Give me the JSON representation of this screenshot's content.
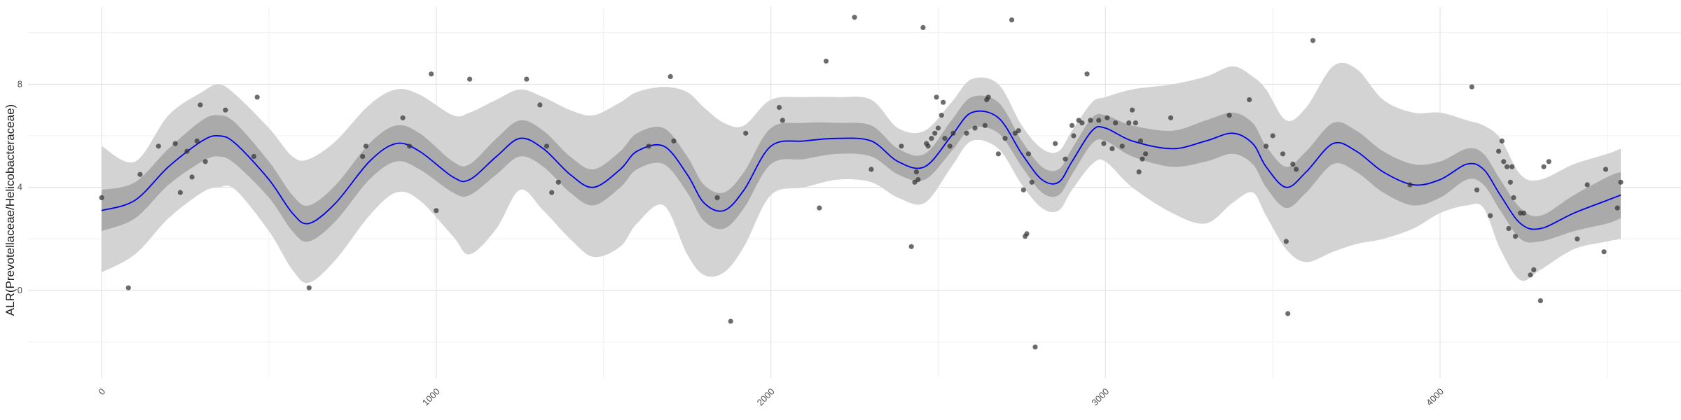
{
  "chart_data": {
    "type": "line",
    "title": "",
    "xlabel": "",
    "ylabel": "ALR(Prevotellaceae/Helicobacteraceae)",
    "xlim": [
      -220,
      4720
    ],
    "ylim": [
      -3.4,
      11.0
    ],
    "grid": true,
    "x_ticks": [
      0,
      1000,
      2000,
      3000,
      4000
    ],
    "x_tick_labels": [
      "0",
      "1000",
      "2000",
      "3000",
      "4000"
    ],
    "y_ticks": [
      0,
      4,
      8
    ],
    "y_tick_labels": [
      "0",
      "4",
      "8"
    ],
    "colors": {
      "fit_line": "#0000ee",
      "inner_band": "#aaaaaa",
      "outer_band": "#d3d3d3",
      "points": "#333333",
      "grid_major": "#e3e3e3",
      "grid_minor": "#f0f0f0"
    },
    "series": [
      {
        "role": "fit",
        "x": [
          0,
          100,
          200,
          300,
          350,
          400,
          500,
          570,
          620,
          700,
          800,
          880,
          950,
          1050,
          1100,
          1180,
          1250,
          1320,
          1400,
          1470,
          1550,
          1600,
          1680,
          1750,
          1800,
          1860,
          1920,
          2000,
          2100,
          2200,
          2300,
          2380,
          2460,
          2540,
          2600,
          2680,
          2750,
          2810,
          2860,
          2900,
          2960,
          3000,
          3080,
          3200,
          3300,
          3380,
          3440,
          3480,
          3540,
          3600,
          3680,
          3750,
          3830,
          3920,
          4000,
          4080,
          4130,
          4180,
          4240,
          4300,
          4400,
          4500,
          4540
        ],
        "y": [
          3.1,
          3.5,
          4.8,
          5.8,
          6.0,
          5.7,
          4.3,
          3.0,
          2.6,
          3.4,
          5.0,
          5.7,
          5.4,
          4.4,
          4.3,
          5.2,
          5.9,
          5.5,
          4.5,
          4.0,
          4.7,
          5.4,
          5.6,
          4.5,
          3.4,
          3.1,
          3.9,
          5.6,
          5.8,
          5.9,
          5.8,
          5.0,
          4.8,
          6.0,
          6.9,
          6.7,
          5.3,
          4.3,
          4.2,
          5.0,
          6.2,
          6.3,
          5.8,
          5.5,
          5.8,
          6.1,
          5.7,
          4.8,
          4.0,
          4.6,
          5.7,
          5.4,
          4.6,
          4.1,
          4.3,
          4.9,
          4.7,
          3.7,
          2.6,
          2.4,
          3.0,
          3.5,
          3.7
        ]
      },
      {
        "role": "inner_band",
        "x": [
          0,
          100,
          200,
          300,
          350,
          400,
          500,
          570,
          620,
          700,
          800,
          880,
          950,
          1050,
          1100,
          1180,
          1250,
          1320,
          1400,
          1470,
          1550,
          1600,
          1680,
          1750,
          1800,
          1860,
          1920,
          2000,
          2100,
          2200,
          2300,
          2380,
          2460,
          2540,
          2600,
          2680,
          2750,
          2810,
          2860,
          2900,
          2960,
          3000,
          3080,
          3200,
          3300,
          3380,
          3440,
          3480,
          3540,
          3600,
          3680,
          3750,
          3830,
          3920,
          4000,
          4080,
          4130,
          4180,
          4240,
          4300,
          4400,
          4500,
          4540
        ],
        "low": [
          2.3,
          2.8,
          4.1,
          5.0,
          5.2,
          4.9,
          3.6,
          2.3,
          1.9,
          2.7,
          4.3,
          5.0,
          4.7,
          3.8,
          3.7,
          4.5,
          5.2,
          4.8,
          3.8,
          3.3,
          4.0,
          4.7,
          4.9,
          3.8,
          2.7,
          2.4,
          3.2,
          4.9,
          5.1,
          5.3,
          5.2,
          4.5,
          4.3,
          5.4,
          6.3,
          6.1,
          4.8,
          3.8,
          3.7,
          4.5,
          5.7,
          5.8,
          5.2,
          4.8,
          5.0,
          5.3,
          4.9,
          4.0,
          3.2,
          3.8,
          4.9,
          4.6,
          3.8,
          3.3,
          3.6,
          4.3,
          4.1,
          3.1,
          2.0,
          1.9,
          2.3,
          2.6,
          2.8
        ],
        "high": [
          3.9,
          4.2,
          5.5,
          6.6,
          6.8,
          6.5,
          5.0,
          3.7,
          3.3,
          4.1,
          5.7,
          6.4,
          6.1,
          5.0,
          4.9,
          5.9,
          6.6,
          6.2,
          5.2,
          4.7,
          5.4,
          6.1,
          6.3,
          5.2,
          4.1,
          3.8,
          4.6,
          6.3,
          6.5,
          6.5,
          6.4,
          5.5,
          5.3,
          6.6,
          7.5,
          7.3,
          5.8,
          4.8,
          4.7,
          5.5,
          6.7,
          6.8,
          6.4,
          6.2,
          6.6,
          6.9,
          6.5,
          5.6,
          4.8,
          5.4,
          6.5,
          6.2,
          5.4,
          4.9,
          5.0,
          5.5,
          5.3,
          4.3,
          3.2,
          2.9,
          3.7,
          4.4,
          4.6
        ]
      },
      {
        "role": "outer_band",
        "x": [
          0,
          100,
          200,
          300,
          350,
          400,
          500,
          570,
          620,
          700,
          800,
          880,
          950,
          1050,
          1100,
          1180,
          1250,
          1320,
          1400,
          1470,
          1550,
          1600,
          1680,
          1750,
          1800,
          1860,
          1920,
          2000,
          2100,
          2200,
          2300,
          2380,
          2460,
          2540,
          2600,
          2680,
          2750,
          2810,
          2860,
          2900,
          2960,
          3000,
          3080,
          3200,
          3300,
          3380,
          3440,
          3480,
          3540,
          3600,
          3680,
          3750,
          3830,
          3920,
          4000,
          4080,
          4130,
          4180,
          4240,
          4300,
          4400,
          4500,
          4540
        ],
        "low": [
          0.7,
          1.4,
          2.8,
          3.8,
          4.0,
          3.9,
          2.3,
          0.8,
          0.3,
          1.2,
          2.9,
          3.8,
          3.5,
          2.1,
          1.4,
          2.4,
          3.9,
          3.1,
          2.0,
          1.3,
          1.7,
          2.6,
          3.3,
          1.4,
          0.6,
          0.7,
          1.7,
          3.7,
          4.0,
          4.3,
          4.2,
          3.6,
          3.4,
          4.8,
          5.8,
          5.5,
          4.1,
          3.2,
          3.1,
          3.9,
          4.9,
          5.0,
          4.0,
          3.0,
          2.6,
          3.4,
          3.8,
          2.9,
          1.6,
          1.1,
          1.5,
          1.8,
          2.0,
          2.4,
          3.0,
          3.3,
          3.2,
          1.6,
          0.4,
          0.8,
          1.6,
          1.9,
          2.0
        ],
        "high": [
          5.6,
          5.0,
          6.8,
          7.7,
          8.0,
          7.6,
          6.3,
          5.2,
          5.1,
          5.8,
          7.2,
          7.8,
          7.6,
          6.8,
          6.9,
          7.4,
          7.8,
          7.5,
          7.0,
          6.8,
          7.3,
          7.7,
          7.9,
          7.7,
          7.1,
          6.5,
          6.4,
          7.4,
          7.5,
          7.5,
          7.4,
          6.3,
          6.2,
          7.3,
          8.2,
          8.0,
          6.4,
          5.5,
          5.4,
          6.2,
          7.3,
          7.5,
          7.8,
          8.0,
          8.3,
          8.7,
          8.3,
          7.8,
          6.6,
          7.1,
          8.7,
          8.6,
          7.4,
          6.9,
          6.9,
          6.6,
          6.4,
          5.9,
          4.5,
          4.3,
          4.9,
          5.3,
          5.5
        ]
      },
      {
        "role": "observations",
        "points": [
          [
            0,
            3.6
          ],
          [
            80,
            0.1
          ],
          [
            115,
            4.5
          ],
          [
            170,
            5.6
          ],
          [
            220,
            5.7
          ],
          [
            235,
            3.8
          ],
          [
            255,
            5.4
          ],
          [
            270,
            4.4
          ],
          [
            285,
            5.8
          ],
          [
            295,
            7.2
          ],
          [
            310,
            5.0
          ],
          [
            370,
            7.0
          ],
          [
            455,
            5.2
          ],
          [
            465,
            7.5
          ],
          [
            620,
            0.1
          ],
          [
            780,
            5.2
          ],
          [
            790,
            5.6
          ],
          [
            900,
            6.7
          ],
          [
            920,
            5.6
          ],
          [
            985,
            8.4
          ],
          [
            1000,
            3.1
          ],
          [
            1100,
            8.2
          ],
          [
            1270,
            8.2
          ],
          [
            1310,
            7.2
          ],
          [
            1330,
            5.6
          ],
          [
            1345,
            3.8
          ],
          [
            1365,
            4.2
          ],
          [
            1635,
            5.6
          ],
          [
            1700,
            8.3
          ],
          [
            1710,
            5.8
          ],
          [
            1840,
            3.6
          ],
          [
            1880,
            -1.2
          ],
          [
            1925,
            6.1
          ],
          [
            2025,
            7.1
          ],
          [
            2035,
            6.6
          ],
          [
            2145,
            3.2
          ],
          [
            2165,
            8.9
          ],
          [
            2250,
            10.6
          ],
          [
            2300,
            4.7
          ],
          [
            2390,
            5.6
          ],
          [
            2420,
            1.7
          ],
          [
            2430,
            4.2
          ],
          [
            2435,
            4.6
          ],
          [
            2440,
            4.3
          ],
          [
            2455,
            10.2
          ],
          [
            2465,
            5.7
          ],
          [
            2470,
            5.6
          ],
          [
            2480,
            5.9
          ],
          [
            2490,
            6.1
          ],
          [
            2495,
            7.5
          ],
          [
            2500,
            6.3
          ],
          [
            2510,
            6.8
          ],
          [
            2515,
            7.3
          ],
          [
            2520,
            5.9
          ],
          [
            2535,
            5.6
          ],
          [
            2545,
            6.1
          ],
          [
            2585,
            6.1
          ],
          [
            2610,
            6.3
          ],
          [
            2640,
            6.4
          ],
          [
            2645,
            7.4
          ],
          [
            2650,
            7.5
          ],
          [
            2680,
            5.3
          ],
          [
            2700,
            5.9
          ],
          [
            2720,
            10.5
          ],
          [
            2730,
            6.1
          ],
          [
            2740,
            6.2
          ],
          [
            2755,
            3.9
          ],
          [
            2760,
            2.1
          ],
          [
            2765,
            2.2
          ],
          [
            2770,
            5.3
          ],
          [
            2780,
            4.2
          ],
          [
            2790,
            -2.2
          ],
          [
            2850,
            5.7
          ],
          [
            2880,
            5.1
          ],
          [
            2900,
            6.4
          ],
          [
            2905,
            6.0
          ],
          [
            2920,
            6.6
          ],
          [
            2930,
            6.5
          ],
          [
            2945,
            8.4
          ],
          [
            2955,
            6.6
          ],
          [
            2980,
            6.6
          ],
          [
            2995,
            5.7
          ],
          [
            3005,
            6.7
          ],
          [
            3020,
            5.5
          ],
          [
            3030,
            6.5
          ],
          [
            3050,
            5.6
          ],
          [
            3070,
            6.5
          ],
          [
            3080,
            7.0
          ],
          [
            3090,
            6.5
          ],
          [
            3100,
            4.6
          ],
          [
            3105,
            5.8
          ],
          [
            3110,
            5.1
          ],
          [
            3120,
            5.3
          ],
          [
            3195,
            6.7
          ],
          [
            3370,
            6.8
          ],
          [
            3430,
            7.4
          ],
          [
            3480,
            5.6
          ],
          [
            3500,
            6.0
          ],
          [
            3530,
            5.3
          ],
          [
            3540,
            1.9
          ],
          [
            3545,
            -0.9
          ],
          [
            3560,
            4.9
          ],
          [
            3570,
            4.7
          ],
          [
            3620,
            9.7
          ],
          [
            3910,
            4.1
          ],
          [
            4095,
            7.9
          ],
          [
            4110,
            3.9
          ],
          [
            4150,
            2.9
          ],
          [
            4175,
            5.4
          ],
          [
            4185,
            5.8
          ],
          [
            4190,
            5.0
          ],
          [
            4200,
            4.8
          ],
          [
            4205,
            2.4
          ],
          [
            4210,
            4.2
          ],
          [
            4215,
            4.8
          ],
          [
            4220,
            3.6
          ],
          [
            4225,
            2.1
          ],
          [
            4240,
            3.0
          ],
          [
            4250,
            3.0
          ],
          [
            4270,
            0.6
          ],
          [
            4280,
            0.8
          ],
          [
            4300,
            -0.4
          ],
          [
            4310,
            4.8
          ],
          [
            4325,
            5.0
          ],
          [
            4410,
            2.0
          ],
          [
            4440,
            4.1
          ],
          [
            4490,
            1.5
          ],
          [
            4495,
            4.7
          ],
          [
            4530,
            3.2
          ],
          [
            4540,
            4.2
          ]
        ]
      }
    ]
  }
}
